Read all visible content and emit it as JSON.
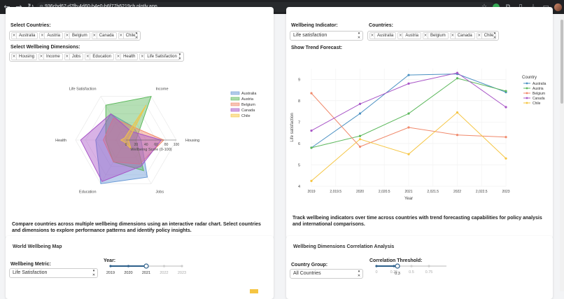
{
  "browser": {
    "url": "936cbd67-d7fb-4d60-b4e0-b6f77b6219cb.plotly.app"
  },
  "radar_card": {
    "countries_label": "Select Countries:",
    "countries": [
      "Australia",
      "Austria",
      "Belgium",
      "Canada",
      "Chile"
    ],
    "dimensions_label": "Select Wellbeing Dimensions:",
    "dimensions": [
      "Housing",
      "Income",
      "Jobs",
      "Education",
      "Health",
      "Life Satisfaction"
    ],
    "description": "Compare countries across multiple wellbeing dimensions using an interactive radar chart. Select countries and dimensions to explore performance patterns and identify policy insights."
  },
  "trend_card": {
    "indicator_label": "Wellbeing Indicator:",
    "indicator_value": "Life satisfaction",
    "countries_label": "Countries:",
    "countries": [
      "Australia",
      "Austria",
      "Belgium",
      "Canada",
      "Chile"
    ],
    "forecast_label": "Show Trend Forecast:",
    "description": "Track wellbeing indicators over time across countries with trend forecasting capabilities for policy analysis and international comparisons."
  },
  "map_card": {
    "title": "World Wellbeing Map",
    "metric_label": "Wellbeing Metric:",
    "metric_value": "Life Satisfaction",
    "year_label": "Year:",
    "year_marks": [
      "2019",
      "2020",
      "2021",
      "2022",
      "2023"
    ],
    "year_selected": 2021
  },
  "corr_card": {
    "title": "Wellbeing Dimensions Correlation Analysis",
    "group_label": "Country Group:",
    "group_value": "All Countries",
    "threshold_label": "Correlation Threshold:",
    "threshold_marks": [
      "0",
      "0.25",
      "0.5",
      "0.75"
    ],
    "threshold_value": 0.3,
    "threshold_tooltip": "0.3"
  },
  "chart_data": [
    {
      "type": "radar",
      "axes": [
        "Housing",
        "Income",
        "Life Satisfaction",
        "Health",
        "Education",
        "Jobs"
      ],
      "radial_range": [
        0,
        100
      ],
      "radial_ticks": [
        "0",
        "20",
        "40",
        "60",
        "80",
        "100"
      ],
      "radial_title": "Wellbeing Score (0-100)",
      "legend_position": "top-right",
      "series": [
        {
          "name": "Australia",
          "color": "#6a9ad6",
          "values": [
            30,
            30,
            60,
            60,
            100,
            85
          ]
        },
        {
          "name": "Austria",
          "color": "#5cb85c",
          "values": [
            20,
            100,
            80,
            40,
            50,
            70
          ]
        },
        {
          "name": "Belgium",
          "color": "#f0896b",
          "values": [
            75,
            30,
            50,
            45,
            50,
            55
          ]
        },
        {
          "name": "Canada",
          "color": "#a855c7",
          "values": [
            70,
            20,
            60,
            90,
            95,
            60
          ]
        },
        {
          "name": "Chile",
          "color": "#f5c542",
          "values": [
            5,
            80,
            5,
            10,
            5,
            20
          ]
        }
      ]
    },
    {
      "type": "line",
      "x": [
        2019,
        2020,
        2021,
        2022,
        2023
      ],
      "x_ticks": [
        "2019",
        "2,019.5",
        "2020",
        "2,020.5",
        "2021",
        "2,021.5",
        "2022",
        "2,022.5",
        "2023"
      ],
      "xlabel": "Year",
      "ylabel": "Life satisfaction",
      "ylim": [
        4,
        9.5
      ],
      "y_ticks": [
        4,
        5,
        6,
        7,
        8,
        9
      ],
      "legend_title": "Country",
      "legend_position": "top-right",
      "series": [
        {
          "name": "Australia",
          "color": "#4a90c2",
          "values": [
            5.8,
            7.4,
            9.2,
            9.25,
            8.4
          ]
        },
        {
          "name": "Austria",
          "color": "#5cb85c",
          "values": [
            5.8,
            6.35,
            7.4,
            9.05,
            8.45
          ]
        },
        {
          "name": "Belgium",
          "color": "#f0896b",
          "values": [
            8.35,
            5.85,
            6.75,
            6.4,
            6.3
          ]
        },
        {
          "name": "Canada",
          "color": "#a855c7",
          "values": [
            6.6,
            7.85,
            8.8,
            9.3,
            7.7
          ]
        },
        {
          "name": "Chile",
          "color": "#f5c542",
          "values": [
            4.25,
            6.2,
            5.5,
            7.45,
            5.3
          ]
        }
      ]
    }
  ]
}
